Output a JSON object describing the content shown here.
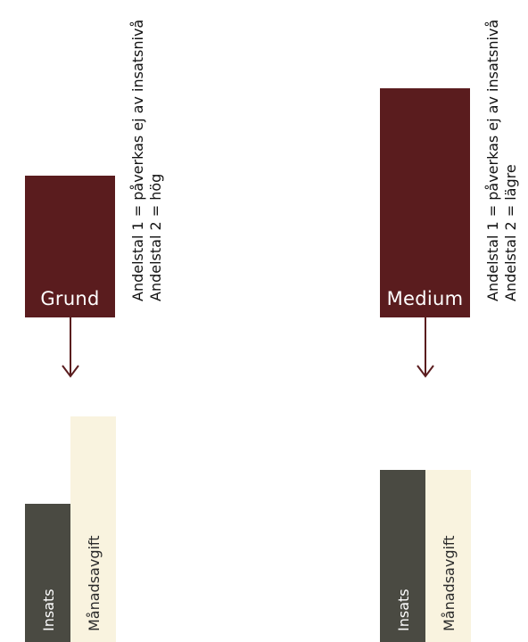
{
  "colors": {
    "level_box": "#5a1c1e",
    "insats_bar": "#4a4a42",
    "manadsavgift_bar": "#f9f3df",
    "arrow": "#5a1c1e"
  },
  "panels": [
    {
      "level_label": "Grund",
      "note_line1": "Andelstal 1 = påverkas ej av insatsnivå",
      "note_line2": "Andelstal 2 = hög",
      "insats_label": "Insats",
      "manadsavgift_label": "Månadsavgift"
    },
    {
      "level_label": "Medium",
      "note_line1": "Andelstal 1 = påverkas ej av insatsnivå",
      "note_line2": "Andelstal 2 = lägre",
      "insats_label": "Insats",
      "manadsavgift_label": "Månadsavgift"
    }
  ],
  "icons": {
    "arrow": "arrow-down-icon"
  }
}
